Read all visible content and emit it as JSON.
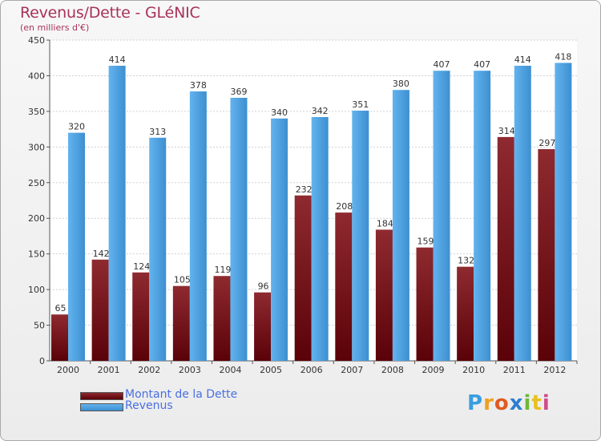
{
  "header": {
    "title": "Revenus/Dette - GLéNIC",
    "subtitle": "(en milliers d'€)"
  },
  "legend": [
    {
      "label": "Montant de la Dette",
      "color": "#7a1018"
    },
    {
      "label": "Revenus",
      "color": "#4fa3e0"
    }
  ],
  "logo": {
    "text": "Proxiti",
    "letters": [
      "P",
      "r",
      "o",
      "x",
      "i",
      "t",
      "i"
    ]
  },
  "colors": {
    "dette": "#7a1018",
    "revenus": "#4fa3e0",
    "axis_text": "#333333",
    "grid": "#cccccc"
  },
  "chart_data": {
    "type": "bar",
    "title": "Revenus/Dette - GLéNIC",
    "ylabel": "(en milliers d'€)",
    "xlabel": "",
    "categories": [
      "2000",
      "2001",
      "2002",
      "2003",
      "2004",
      "2005",
      "2006",
      "2007",
      "2008",
      "2009",
      "2010",
      "2011",
      "2012"
    ],
    "series": [
      {
        "name": "Montant de la Dette",
        "values": [
          65,
          142,
          124,
          105,
          119,
          96,
          232,
          208,
          184,
          159,
          132,
          314,
          297
        ]
      },
      {
        "name": "Revenus",
        "values": [
          320,
          414,
          313,
          378,
          369,
          340,
          342,
          351,
          380,
          407,
          407,
          414,
          418
        ]
      }
    ],
    "ylim": [
      0,
      450
    ],
    "yticks": [
      0,
      50,
      100,
      150,
      200,
      250,
      300,
      350,
      400,
      450
    ],
    "grid": true,
    "legend_position": "bottom-left"
  }
}
